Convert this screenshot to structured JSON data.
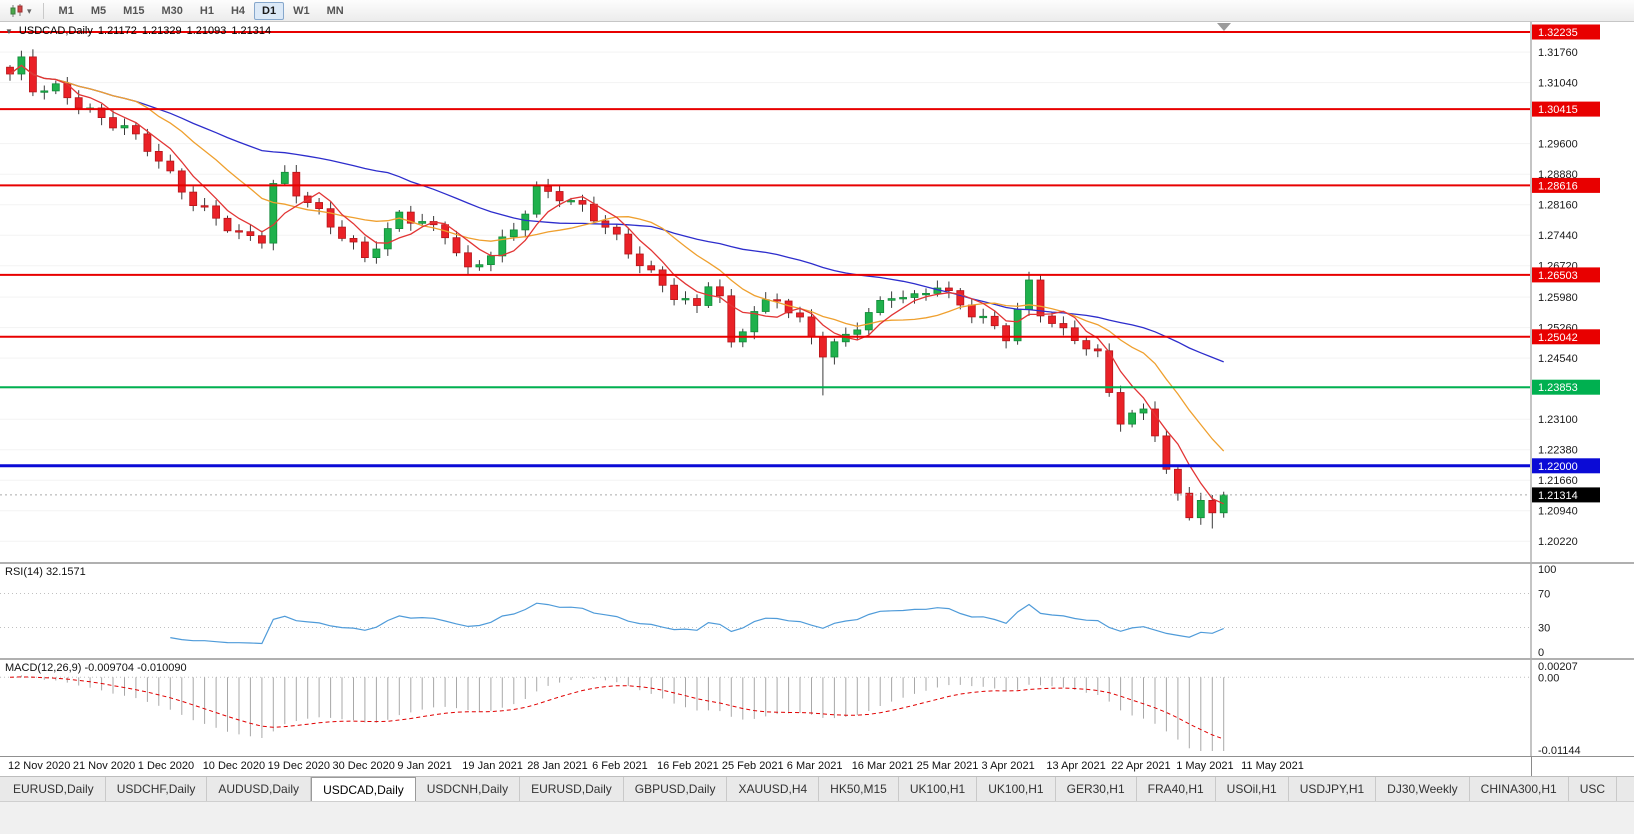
{
  "toolbar": {
    "timeframes": [
      {
        "label": "M1",
        "active": false
      },
      {
        "label": "M5",
        "active": false
      },
      {
        "label": "M15",
        "active": false
      },
      {
        "label": "M30",
        "active": false
      },
      {
        "label": "H1",
        "active": false
      },
      {
        "label": "H4",
        "active": false
      },
      {
        "label": "D1",
        "active": true
      },
      {
        "label": "W1",
        "active": false
      },
      {
        "label": "MN",
        "active": false
      }
    ]
  },
  "chart": {
    "symbol": "USDCAD,Daily",
    "open": "1.21172",
    "high": "1.21329",
    "low": "1.21093",
    "close": "1.21314"
  },
  "chart_data": [
    {
      "type": "candlestick",
      "title": "USDCAD,Daily",
      "x_labels": [
        "12 Nov 2020",
        "21 Nov 2020",
        "1 Dec 2020",
        "10 Dec 2020",
        "19 Dec 2020",
        "30 Dec 2020",
        "9 Jan 2021",
        "19 Jan 2021",
        "28 Jan 2021",
        "6 Feb 2021",
        "16 Feb 2021",
        "25 Feb 2021",
        "6 Mar 2021",
        "16 Mar 2021",
        "25 Mar 2021",
        "3 Apr 2021",
        "13 Apr 2021",
        "22 Apr 2021",
        "1 May 2021",
        "11 May 2021"
      ],
      "ylim": [
        1.1973,
        1.3247
      ],
      "y_ticks": [
        "1.31760",
        "1.31040",
        "1.29600",
        "1.28880",
        "1.28160",
        "1.27440",
        "1.26720",
        "1.25980",
        "1.25260",
        "1.24540",
        "1.23820",
        "1.23100",
        "1.22380",
        "1.21660",
        "1.20940",
        "1.20220"
      ],
      "bar_count": 107,
      "close_anchors": [
        [
          0,
          1.3118
        ],
        [
          1,
          1.315
        ],
        [
          2,
          1.3088
        ],
        [
          4,
          1.3095
        ],
        [
          6,
          1.306
        ],
        [
          8,
          1.3022
        ],
        [
          10,
          1.2995
        ],
        [
          12,
          1.2945
        ],
        [
          14,
          1.288
        ],
        [
          16,
          1.282
        ],
        [
          18,
          1.2792
        ],
        [
          20,
          1.275
        ],
        [
          22,
          1.2738
        ],
        [
          23,
          1.286
        ],
        [
          24,
          1.288
        ],
        [
          25,
          1.284
        ],
        [
          27,
          1.279
        ],
        [
          29,
          1.2742
        ],
        [
          31,
          1.2698
        ],
        [
          33,
          1.2758
        ],
        [
          34,
          1.28
        ],
        [
          36,
          1.2772
        ],
        [
          38,
          1.2742
        ],
        [
          40,
          1.2652
        ],
        [
          42,
          1.27
        ],
        [
          44,
          1.2762
        ],
        [
          46,
          1.2858
        ],
        [
          48,
          1.284
        ],
        [
          50,
          1.2806
        ],
        [
          52,
          1.2758
        ],
        [
          54,
          1.27
        ],
        [
          56,
          1.2652
        ],
        [
          58,
          1.2608
        ],
        [
          60,
          1.258
        ],
        [
          61,
          1.2638
        ],
        [
          62,
          1.26
        ],
        [
          63,
          1.2482
        ],
        [
          65,
          1.256
        ],
        [
          67,
          1.2588
        ],
        [
          69,
          1.254
        ],
        [
          71,
          1.2472
        ],
        [
          73,
          1.2512
        ],
        [
          75,
          1.2562
        ],
        [
          77,
          1.26
        ],
        [
          79,
          1.2588
        ],
        [
          81,
          1.2622
        ],
        [
          83,
          1.258
        ],
        [
          85,
          1.2552
        ],
        [
          87,
          1.2512
        ],
        [
          89,
          1.263
        ],
        [
          90,
          1.256
        ],
        [
          92,
          1.2508
        ],
        [
          94,
          1.2478
        ],
        [
          95,
          1.2458
        ],
        [
          96,
          1.2372
        ],
        [
          97,
          1.2312
        ],
        [
          99,
          1.2335
        ],
        [
          100,
          1.2288
        ],
        [
          101,
          1.2195
        ],
        [
          102,
          1.2128
        ],
        [
          103,
          1.2085
        ],
        [
          104,
          1.2118
        ],
        [
          105,
          1.2072
        ],
        [
          106,
          1.21314
        ]
      ],
      "special_wicks": [
        [
          1,
          "high",
          1.3176
        ],
        [
          71,
          "low",
          1.2366
        ],
        [
          89,
          "high",
          1.2658
        ],
        [
          105,
          "low",
          1.2052
        ]
      ],
      "hlines": [
        {
          "price": 1.32235,
          "label": "1.32235",
          "color": "#e80000",
          "width": 2
        },
        {
          "price": 1.30415,
          "label": "1.30415",
          "color": "#e80000",
          "width": 2
        },
        {
          "price": 1.28616,
          "label": "1.28616",
          "color": "#e80000",
          "width": 2
        },
        {
          "price": 1.26503,
          "label": "1.26503",
          "color": "#e80000",
          "width": 2
        },
        {
          "price": 1.25042,
          "label": "1.25042",
          "color": "#e80000",
          "width": 2
        },
        {
          "price": 1.23853,
          "label": "1.23853",
          "color": "#00b050",
          "width": 2
        },
        {
          "price": 1.22,
          "label": "1.22000",
          "color": "#0b0bd6",
          "width": 3
        }
      ],
      "last_price": {
        "value": 1.21314,
        "label": "1.21314",
        "bg": "#000000"
      },
      "ma_lines": [
        {
          "name": "slow-ma",
          "period": 34,
          "color": "#2d2dcc"
        },
        {
          "name": "medium-ma",
          "period": 12,
          "color": "#efa02f"
        },
        {
          "name": "fast-ma",
          "period": 5,
          "color": "#e23535"
        }
      ],
      "colors": {
        "up": "#1fb14c",
        "up_border": "#128a39",
        "down": "#ea2127",
        "down_border": "#b5151a",
        "wick": "#3a3a3a"
      }
    },
    {
      "type": "line",
      "name": "RSI",
      "label": "RSI(14) 32.1571",
      "period": 14,
      "current": 32.1571,
      "levels": [
        100,
        70,
        30,
        0
      ],
      "color": "#4f9bd9"
    },
    {
      "type": "macd",
      "label": "MACD(12,26,9) -0.009704 -0.010090",
      "macd_value": -0.009704,
      "signal_value": -0.01009,
      "params": [
        12,
        26,
        9
      ],
      "ylim": [
        -0.01144,
        0.00207
      ],
      "y_ticks": [
        "0.00207",
        "0.00",
        "-0.01144"
      ],
      "histogram_color": "#a8a8a8",
      "signal_color": "#e00000"
    }
  ],
  "tabbar": {
    "tabs": [
      {
        "label": "EURUSD,Daily",
        "active": false
      },
      {
        "label": "USDCHF,Daily",
        "active": false
      },
      {
        "label": "AUDUSD,Daily",
        "active": false
      },
      {
        "label": "USDCAD,Daily",
        "active": true
      },
      {
        "label": "USDCNH,Daily",
        "active": false
      },
      {
        "label": "EURUSD,Daily",
        "active": false
      },
      {
        "label": "GBPUSD,Daily",
        "active": false
      },
      {
        "label": "XAUUSD,H4",
        "active": false
      },
      {
        "label": "HK50,M15",
        "active": false
      },
      {
        "label": "UK100,H1",
        "active": false
      },
      {
        "label": "UK100,H1",
        "active": false
      },
      {
        "label": "GER30,H1",
        "active": false
      },
      {
        "label": "FRA40,H1",
        "active": false
      },
      {
        "label": "USOil,H1",
        "active": false
      },
      {
        "label": "USDJPY,H1",
        "active": false
      },
      {
        "label": "DJ30,Weekly",
        "active": false
      },
      {
        "label": "CHINA300,H1",
        "active": false
      },
      {
        "label": "USC",
        "active": false
      }
    ]
  }
}
